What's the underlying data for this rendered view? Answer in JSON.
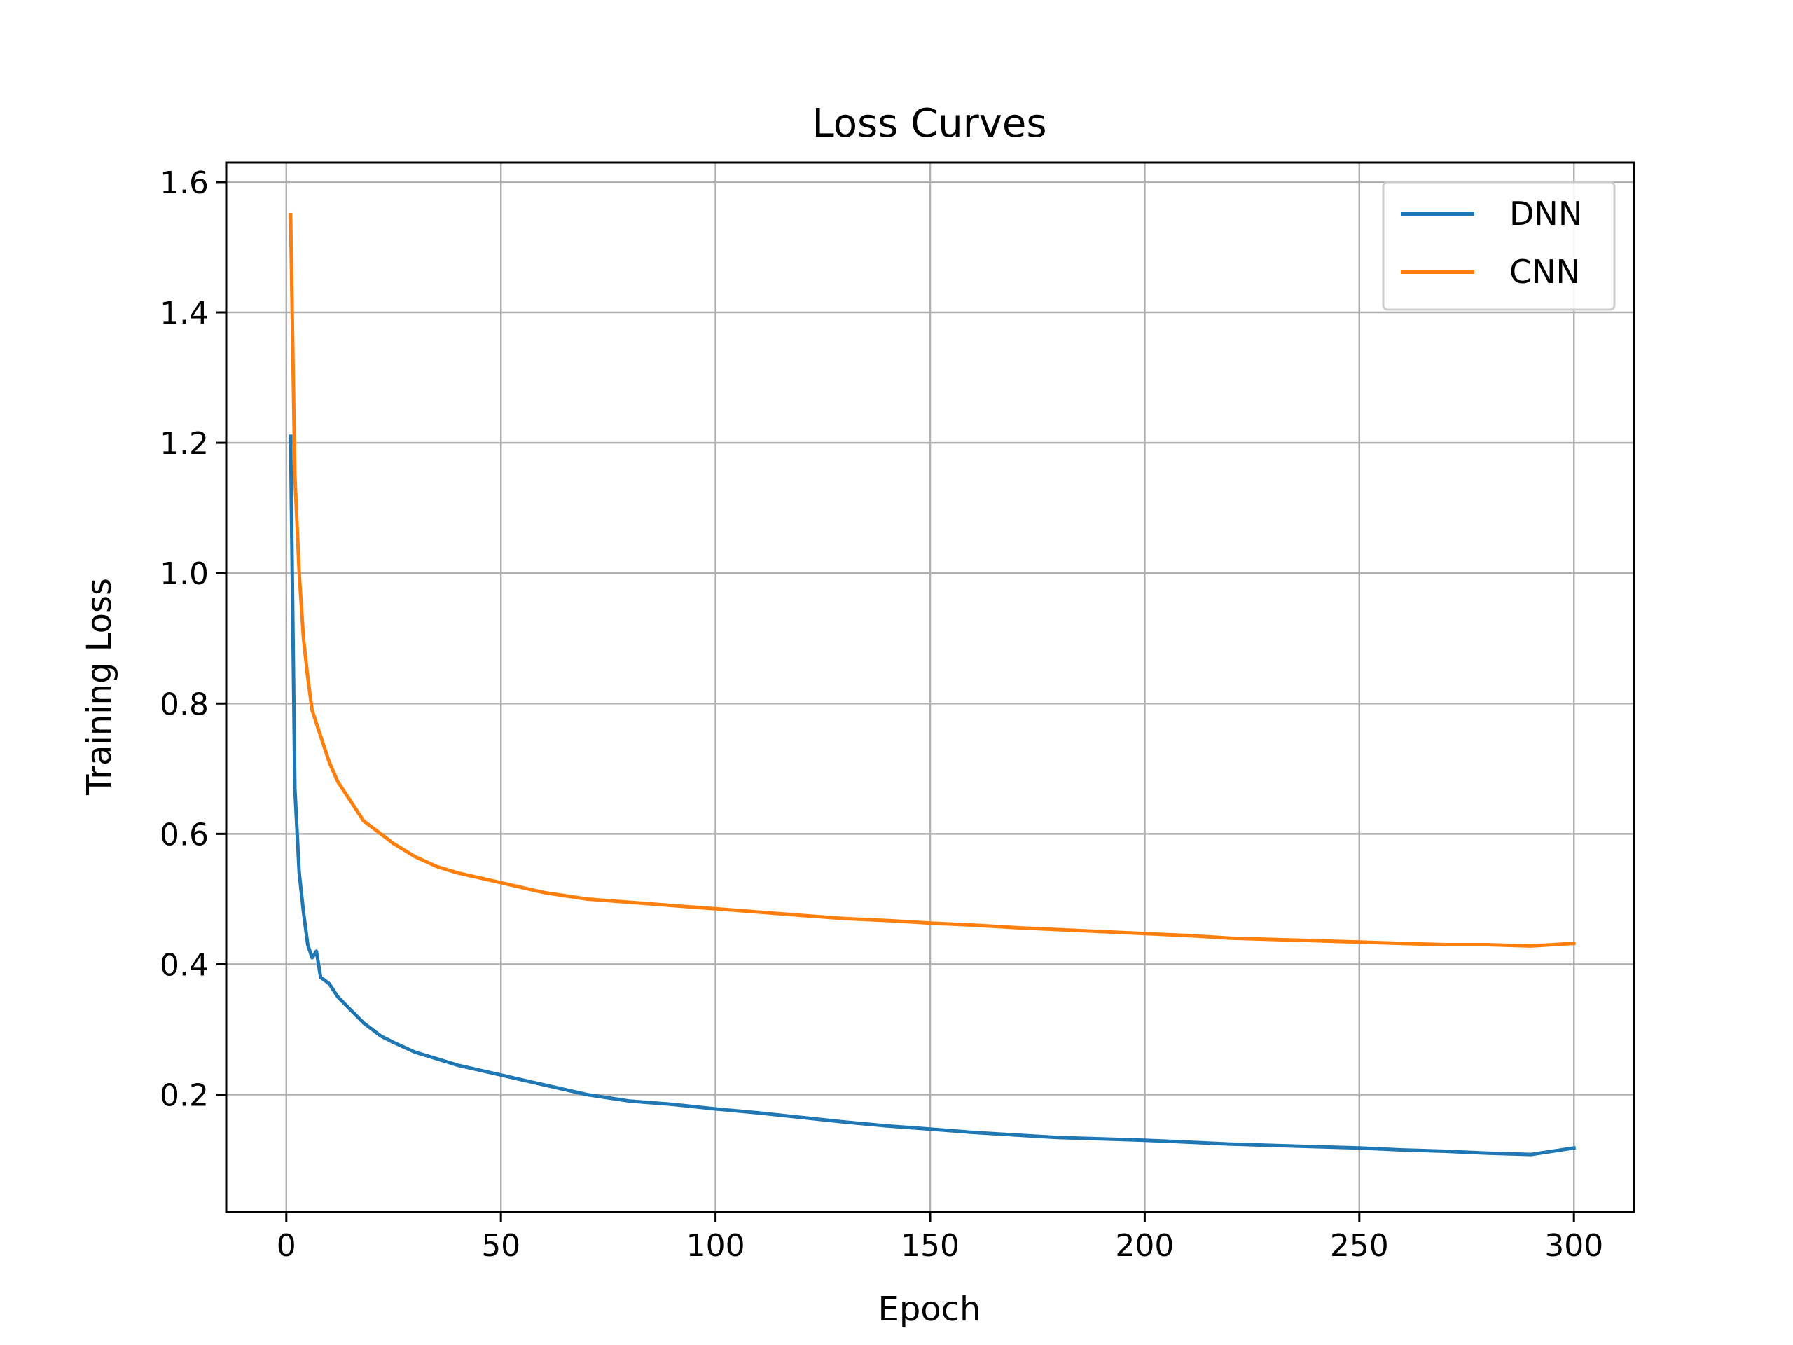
{
  "chart_data": {
    "type": "line",
    "title": "Loss Curves",
    "xlabel": "Epoch",
    "ylabel": "Training Loss",
    "xlim": [
      -14,
      314
    ],
    "ylim": [
      0.02,
      1.63
    ],
    "xticks": [
      0,
      50,
      100,
      150,
      200,
      250,
      300
    ],
    "yticks": [
      0.2,
      0.4,
      0.6,
      0.8,
      1.0,
      1.2,
      1.4,
      1.6
    ],
    "ytick_labels": [
      "0.2",
      "0.4",
      "0.6",
      "0.8",
      "1.0",
      "1.2",
      "1.4",
      "1.6"
    ],
    "grid": true,
    "legend_position": "top-right",
    "series": [
      {
        "name": "DNN",
        "color": "#1f77b4",
        "x": [
          1,
          2,
          3,
          4,
          5,
          6,
          7,
          8,
          10,
          12,
          15,
          18,
          20,
          22,
          25,
          30,
          35,
          40,
          50,
          60,
          70,
          80,
          90,
          100,
          110,
          120,
          130,
          140,
          150,
          160,
          170,
          180,
          190,
          200,
          210,
          220,
          230,
          240,
          250,
          260,
          270,
          280,
          290,
          300
        ],
        "y": [
          1.21,
          0.67,
          0.54,
          0.48,
          0.43,
          0.41,
          0.42,
          0.38,
          0.37,
          0.35,
          0.33,
          0.31,
          0.3,
          0.29,
          0.28,
          0.265,
          0.255,
          0.245,
          0.23,
          0.215,
          0.2,
          0.19,
          0.185,
          0.178,
          0.172,
          0.165,
          0.158,
          0.152,
          0.147,
          0.142,
          0.138,
          0.134,
          0.132,
          0.13,
          0.127,
          0.124,
          0.122,
          0.12,
          0.118,
          0.115,
          0.113,
          0.11,
          0.108,
          0.118
        ]
      },
      {
        "name": "CNN",
        "color": "#ff7f0e",
        "x": [
          1,
          2,
          3,
          4,
          5,
          6,
          7,
          8,
          10,
          12,
          15,
          18,
          20,
          22,
          25,
          30,
          35,
          40,
          50,
          60,
          70,
          80,
          90,
          100,
          110,
          120,
          130,
          140,
          150,
          160,
          170,
          180,
          190,
          200,
          210,
          220,
          230,
          240,
          250,
          260,
          270,
          280,
          290,
          300
        ],
        "y": [
          1.55,
          1.15,
          1.0,
          0.9,
          0.84,
          0.79,
          0.77,
          0.75,
          0.71,
          0.68,
          0.65,
          0.62,
          0.61,
          0.6,
          0.585,
          0.565,
          0.55,
          0.54,
          0.525,
          0.51,
          0.5,
          0.495,
          0.49,
          0.485,
          0.48,
          0.475,
          0.47,
          0.467,
          0.463,
          0.46,
          0.456,
          0.453,
          0.45,
          0.447,
          0.444,
          0.44,
          0.438,
          0.436,
          0.434,
          0.432,
          0.43,
          0.43,
          0.428,
          0.432
        ]
      }
    ]
  }
}
